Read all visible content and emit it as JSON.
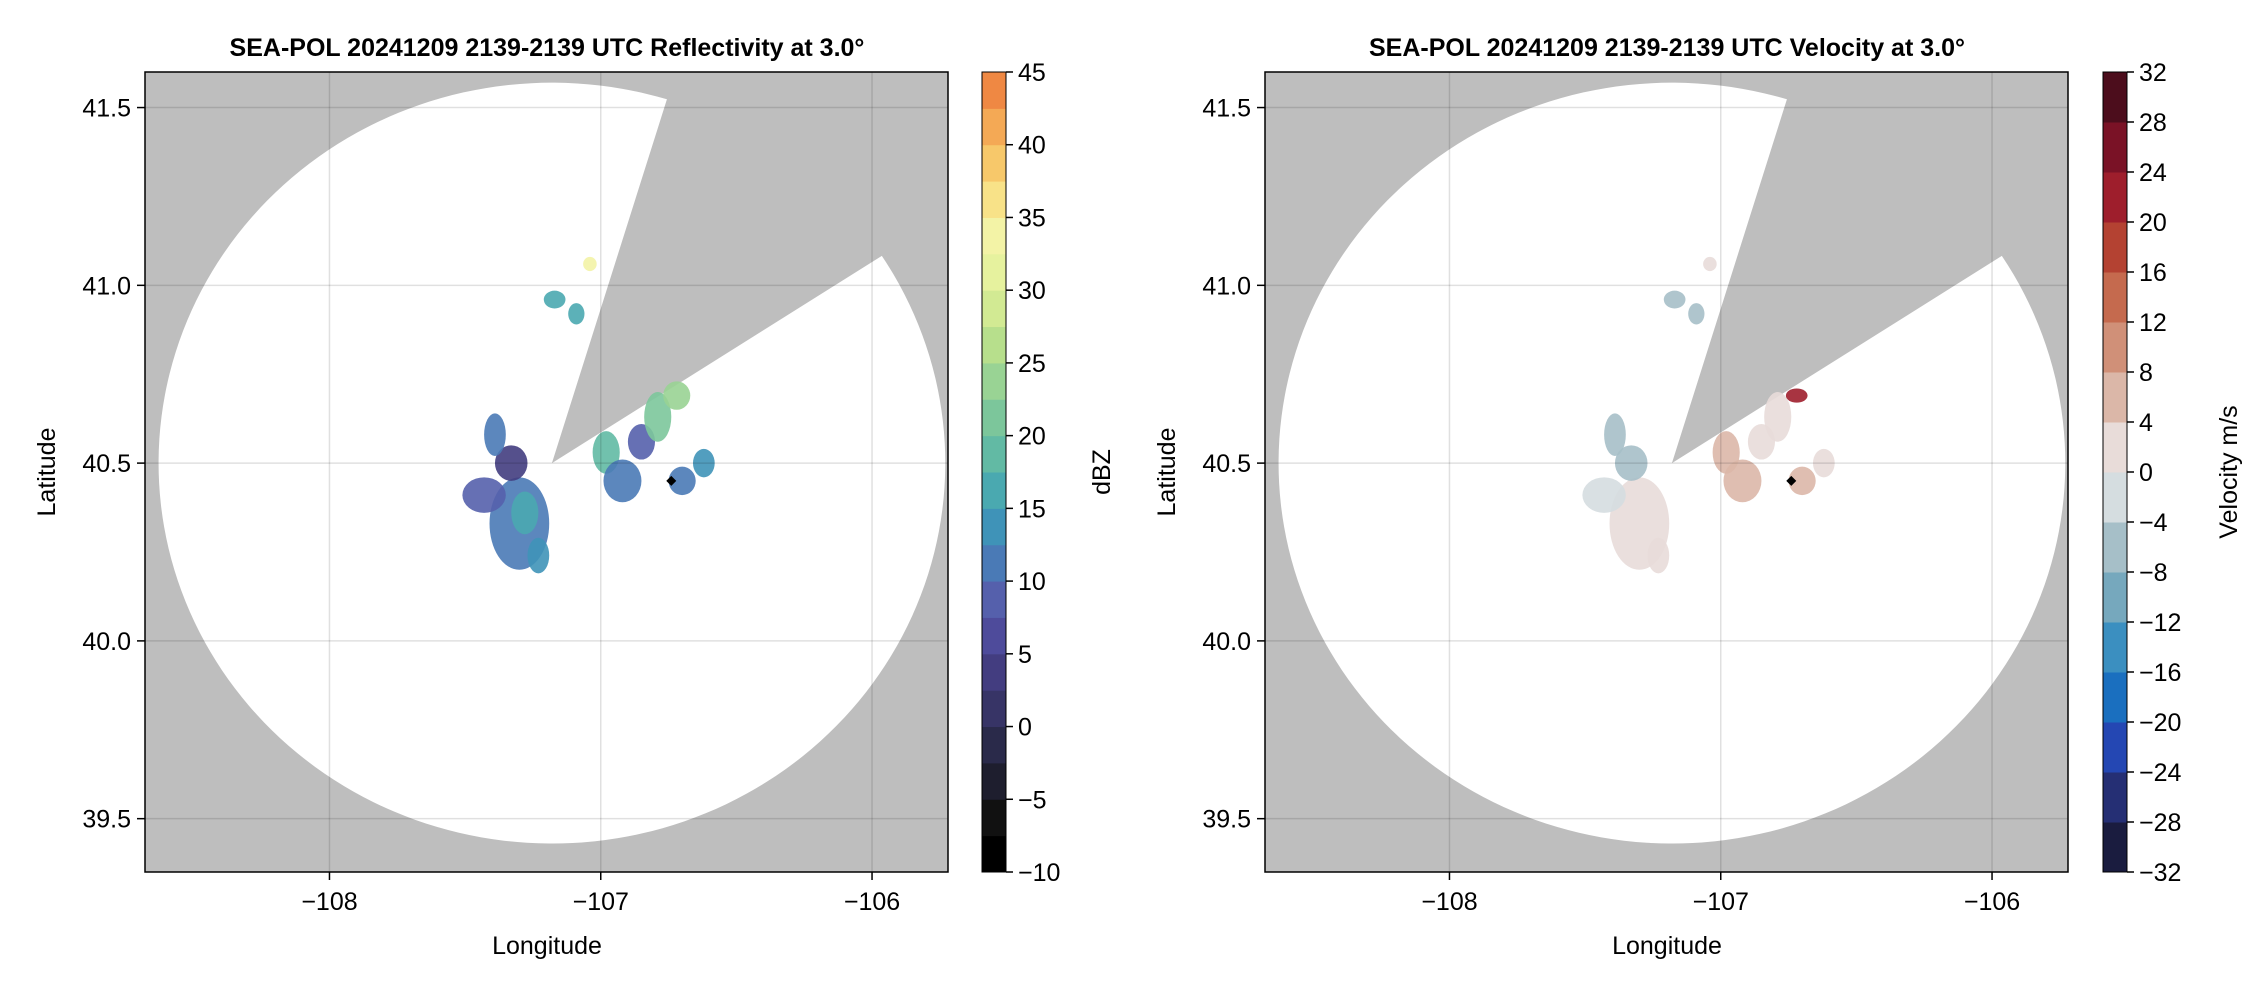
{
  "chart_data": [
    {
      "type": "heatmap",
      "title": "SEA-POL 20241209 2139-2139 UTC Reflectivity at 3.0°",
      "xlabel": "Longitude",
      "ylabel": "Latitude",
      "xlim": [
        -108.68,
        -105.72
      ],
      "ylim": [
        39.35,
        41.6
      ],
      "xticks": [
        -108,
        -107,
        -106
      ],
      "xtick_labels": [
        "−108",
        "−107",
        "−106"
      ],
      "yticks": [
        39.5,
        40.0,
        40.5,
        41.0,
        41.5
      ],
      "ytick_labels": [
        "39.5",
        "40.0",
        "40.5",
        "41.0",
        "41.5"
      ],
      "grid": true,
      "background_color": "#bebebe",
      "radar": {
        "lon": -107.18,
        "lat": 40.5,
        "range_lon": 1.45,
        "range_lat": 1.07,
        "blocked_sector_deg": [
          17,
          57
        ]
      },
      "marker": {
        "lon": -106.74,
        "lat": 40.45
      },
      "colorbar": {
        "label": "dBZ",
        "min": -10,
        "max": 45,
        "step": 2.5,
        "ticks": [
          -10,
          -5,
          0,
          5,
          10,
          15,
          20,
          25,
          30,
          35,
          40,
          45
        ],
        "tick_labels": [
          "−10",
          "−5",
          "0",
          "5",
          "10",
          "15",
          "20",
          "25",
          "30",
          "35",
          "40",
          "45"
        ],
        "colors": [
          "#000000",
          "#111111",
          "#1e1e2e",
          "#2a2a4a",
          "#373466",
          "#433d80",
          "#4e4b9b",
          "#5560ac",
          "#4a7ab6",
          "#3f93b8",
          "#4aa9b0",
          "#62baa4",
          "#7cc69b",
          "#99d394",
          "#b7df8c",
          "#d2ea93",
          "#e6f29e",
          "#f3f3a6",
          "#f8e288",
          "#f7c86a",
          "#f4a955",
          "#ef8843",
          "#e66a3c",
          "#d84d3b",
          "#c93346",
          "#bd1c55",
          "#b10b60",
          "#c61c7b",
          "#d8409a",
          "#e46ab4",
          "#e990c6",
          "#c792c9",
          "#a77ac0",
          "#8b60b0",
          "#70449c",
          "#5a2b83",
          "#46166a",
          "#320a50"
        ]
      },
      "echoes": [
        {
          "lon": -107.3,
          "lat": 40.33,
          "rlon": 0.11,
          "rlat": 0.13,
          "value": 10
        },
        {
          "lon": -107.28,
          "lat": 40.36,
          "rlon": 0.05,
          "rlat": 0.06,
          "value": 16
        },
        {
          "lon": -107.43,
          "lat": 40.41,
          "rlon": 0.08,
          "rlat": 0.05,
          "value": 9
        },
        {
          "lon": -107.33,
          "lat": 40.5,
          "rlon": 0.06,
          "rlat": 0.05,
          "value": 3
        },
        {
          "lon": -107.39,
          "lat": 40.58,
          "rlon": 0.04,
          "rlat": 0.06,
          "value": 11
        },
        {
          "lon": -107.23,
          "lat": 40.24,
          "rlon": 0.04,
          "rlat": 0.05,
          "value": 14
        },
        {
          "lon": -106.98,
          "lat": 40.53,
          "rlon": 0.05,
          "rlat": 0.06,
          "value": 18
        },
        {
          "lon": -106.92,
          "lat": 40.45,
          "rlon": 0.07,
          "rlat": 0.06,
          "value": 10
        },
        {
          "lon": -106.85,
          "lat": 40.56,
          "rlon": 0.05,
          "rlat": 0.05,
          "value": 8
        },
        {
          "lon": -106.79,
          "lat": 40.63,
          "rlon": 0.05,
          "rlat": 0.07,
          "value": 20
        },
        {
          "lon": -106.72,
          "lat": 40.69,
          "rlon": 0.05,
          "rlat": 0.04,
          "value": 24
        },
        {
          "lon": -106.7,
          "lat": 40.45,
          "rlon": 0.05,
          "rlat": 0.04,
          "value": 11
        },
        {
          "lon": -106.62,
          "lat": 40.5,
          "rlon": 0.04,
          "rlat": 0.04,
          "value": 14
        },
        {
          "lon": -107.04,
          "lat": 41.06,
          "rlon": 0.025,
          "rlat": 0.02,
          "value": 33
        },
        {
          "lon": -107.17,
          "lat": 40.96,
          "rlon": 0.04,
          "rlat": 0.025,
          "value": 16
        },
        {
          "lon": -107.09,
          "lat": 40.92,
          "rlon": 0.03,
          "rlat": 0.03,
          "value": 17
        }
      ]
    },
    {
      "type": "heatmap",
      "title": "SEA-POL 20241209 2139-2139 UTC Velocity at 3.0°",
      "xlabel": "Longitude",
      "ylabel": "Latitude",
      "xlim": [
        -108.68,
        -105.72
      ],
      "ylim": [
        39.35,
        41.6
      ],
      "xticks": [
        -108,
        -107,
        -106
      ],
      "xtick_labels": [
        "−108",
        "−107",
        "−106"
      ],
      "yticks": [
        39.5,
        40.0,
        40.5,
        41.0,
        41.5
      ],
      "ytick_labels": [
        "39.5",
        "40.0",
        "40.5",
        "41.0",
        "41.5"
      ],
      "grid": true,
      "background_color": "#bebebe",
      "radar": {
        "lon": -107.18,
        "lat": 40.5,
        "range_lon": 1.45,
        "range_lat": 1.07,
        "blocked_sector_deg": [
          17,
          57
        ]
      },
      "marker": {
        "lon": -106.74,
        "lat": 40.45
      },
      "colorbar": {
        "label": "Velocity m/s",
        "min": -32,
        "max": 32,
        "step": 4,
        "ticks": [
          -32,
          -28,
          -24,
          -20,
          -16,
          -12,
          -8,
          -4,
          0,
          4,
          8,
          12,
          16,
          20,
          24,
          28,
          32
        ],
        "tick_labels": [
          "−32",
          "−28",
          "−24",
          "−20",
          "−16",
          "−12",
          "−8",
          "−4",
          "0",
          "4",
          "8",
          "12",
          "16",
          "20",
          "24",
          "28",
          "32"
        ],
        "colors": [
          "#1a1c3f",
          "#252f74",
          "#2447b3",
          "#1a6fbf",
          "#3b8fc0",
          "#76a8bd",
          "#a6bfc8",
          "#d5dde0",
          "#e8dcd9",
          "#dbb7a8",
          "#d09078",
          "#c56a4e",
          "#b44232",
          "#9e1e2c",
          "#7a1226",
          "#4c0d1c"
        ]
      },
      "echoes": [
        {
          "lon": -107.3,
          "lat": 40.33,
          "rlon": 0.11,
          "rlat": 0.13,
          "value": 2
        },
        {
          "lon": -107.43,
          "lat": 40.41,
          "rlon": 0.08,
          "rlat": 0.05,
          "value": -2
        },
        {
          "lon": -107.33,
          "lat": 40.5,
          "rlon": 0.06,
          "rlat": 0.05,
          "value": -6
        },
        {
          "lon": -107.39,
          "lat": 40.58,
          "rlon": 0.04,
          "rlat": 0.06,
          "value": -5
        },
        {
          "lon": -107.23,
          "lat": 40.24,
          "rlon": 0.04,
          "rlat": 0.05,
          "value": 2
        },
        {
          "lon": -106.98,
          "lat": 40.53,
          "rlon": 0.05,
          "rlat": 0.06,
          "value": 7
        },
        {
          "lon": -106.92,
          "lat": 40.45,
          "rlon": 0.07,
          "rlat": 0.06,
          "value": 6
        },
        {
          "lon": -106.85,
          "lat": 40.56,
          "rlon": 0.05,
          "rlat": 0.05,
          "value": 2
        },
        {
          "lon": -106.79,
          "lat": 40.63,
          "rlon": 0.05,
          "rlat": 0.07,
          "value": 2
        },
        {
          "lon": -106.72,
          "lat": 40.69,
          "rlon": 0.04,
          "rlat": 0.02,
          "value": 22
        },
        {
          "lon": -106.7,
          "lat": 40.45,
          "rlon": 0.05,
          "rlat": 0.04,
          "value": 6
        },
        {
          "lon": -106.62,
          "lat": 40.5,
          "rlon": 0.04,
          "rlat": 0.04,
          "value": 2
        },
        {
          "lon": -107.04,
          "lat": 41.06,
          "rlon": 0.025,
          "rlat": 0.02,
          "value": 1
        },
        {
          "lon": -107.17,
          "lat": 40.96,
          "rlon": 0.04,
          "rlat": 0.025,
          "value": -5
        },
        {
          "lon": -107.09,
          "lat": 40.92,
          "rlon": 0.03,
          "rlat": 0.03,
          "value": -6
        }
      ]
    }
  ]
}
